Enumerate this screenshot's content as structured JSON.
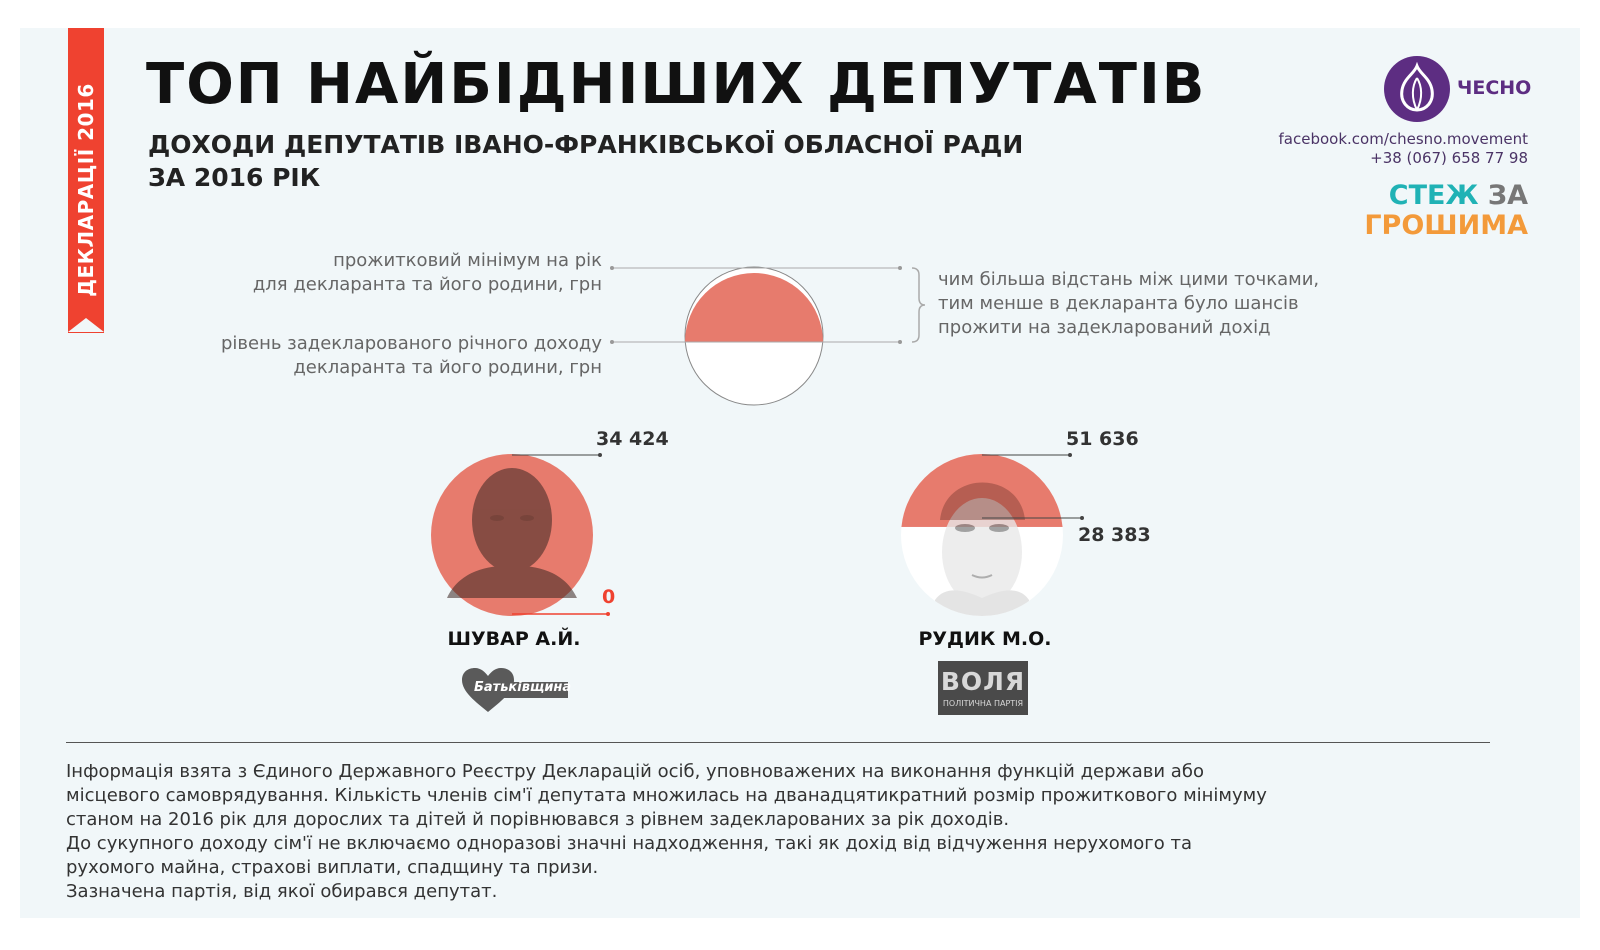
{
  "sidebar_tag": "ДЕКЛАРАЦІЇ 2016",
  "title": "ТОП НАЙБІДНІШИХ ДЕПУТАТІВ",
  "subtitle_line1": "ДОХОДИ ДЕПУТАТІВ ІВАНО-ФРАНКІВСЬКОЇ ОБЛАСНОЇ РАДИ",
  "subtitle_line2": "ЗА 2016 РІК",
  "brand": {
    "logo_text": "ЧЕСНО",
    "facebook": "facebook.com/chesno.movement",
    "phone": "+38 (067) 658 77 98",
    "stezh_word1": "СТЕЖ",
    "stezh_word2": "ЗА",
    "stezh_word3": "ГРОШИМА",
    "color_purple": "#5d2d82",
    "color_teal": "#20b2b5",
    "color_orange": "#f39a3a"
  },
  "legend": {
    "top_label_line1": "прожитковий мінімум на рік",
    "top_label_line2": "для декларанта та його родини, грн",
    "bottom_label_line1": "рівень задекларованого річного доходу",
    "bottom_label_line2": "декларанта та його родини, грн",
    "note_line1": "чим більша відстань між цими точками,",
    "note_line2": "тим менше в декларанта було шансів",
    "note_line3": "прожити на задекларований дохід"
  },
  "chart_data": {
    "type": "bar",
    "unit": "грн",
    "fill_color": "#e77b6d",
    "deputies": [
      {
        "name": "ШУВАР А.Й.",
        "subsistence_minimum": 34424,
        "declared_income": 0,
        "party": "Батьківщина"
      },
      {
        "name": "РУДИК М.О.",
        "subsistence_minimum": 51636,
        "declared_income": 28383,
        "party": "ВОЛЯ",
        "party_sub": "ПОЛІТИЧНА ПАРТІЯ"
      }
    ],
    "labels": {
      "d1_min": "34 424",
      "d1_income": "0",
      "d2_min": "51 636",
      "d2_income": "28 383"
    }
  },
  "footnote": {
    "line1": "Інформація взята з Єдиного Державного Реєстру Декларацій осіб, уповноважених на виконання функцій держави або",
    "line2": "місцевого самоврядування. Кількість членів сім'ї депутата множилась на дванадцятикратний розмір прожиткового мінімуму",
    "line3": "станом на 2016 рік для дорослих та дітей й порівнювався з рівнем задекларованих за рік доходів.",
    "line4": "До сукупного доходу сім'ї не включаємо одноразові значні надходження, такі як дохід від відчуження нерухомого та",
    "line5": "рухомого майна, страхові виплати, спадщину та призи.",
    "line6": "Зазначена партія, від якої обирався депутат."
  }
}
